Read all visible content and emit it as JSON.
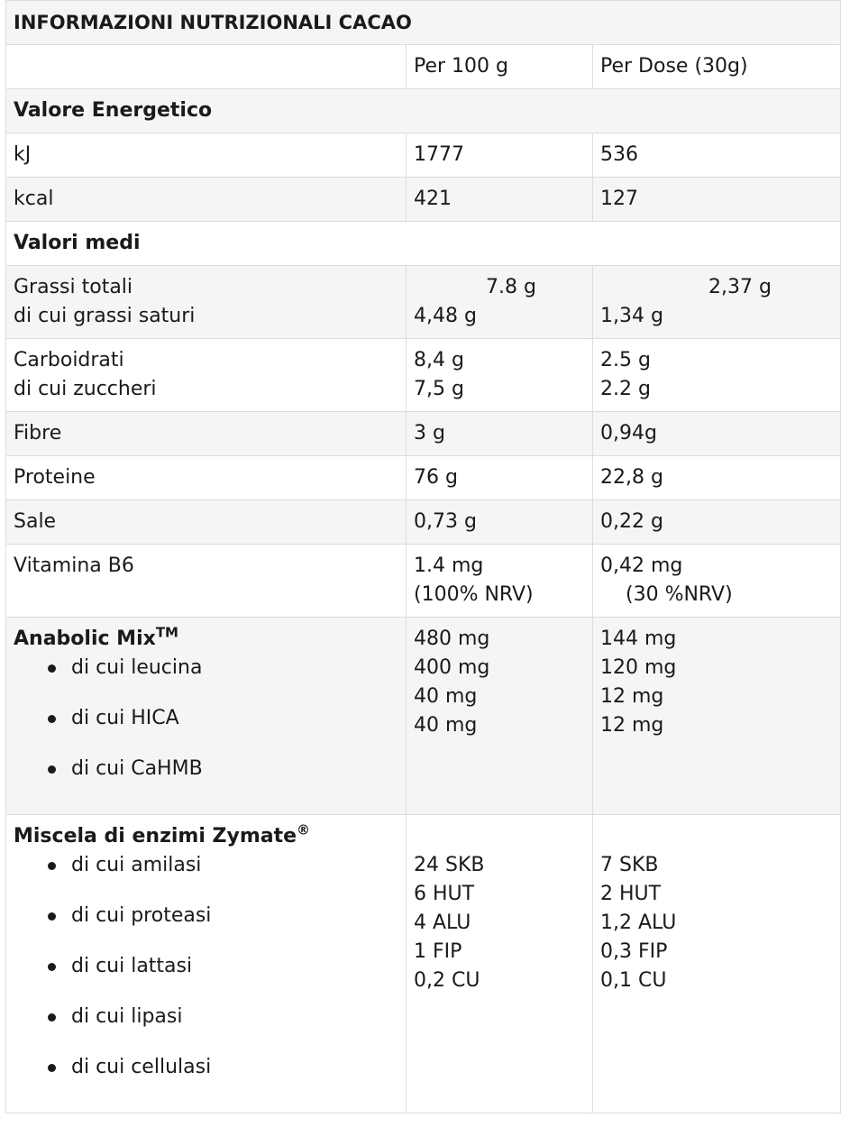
{
  "title": "INFORMAZIONI NUTRIZIONALI CACAO",
  "columns": {
    "per100": "Per 100 g",
    "perDose": "Per Dose (30g)"
  },
  "energy_header": "Valore Energetico",
  "energy": [
    {
      "label": "kJ",
      "per100": "1777",
      "perDose": "536"
    },
    {
      "label": "kcal",
      "per100": "421",
      "perDose": "127"
    }
  ],
  "means_header": "Valori medi",
  "fats": {
    "label1": "Grassi totali",
    "label2": "di cui grassi saturi",
    "per100_1": "7.8 g",
    "per100_2": "4,48 g",
    "perDose_1": "2,37 g",
    "perDose_2": "1,34 g"
  },
  "carbs": {
    "label1": "Carboidrati",
    "label2": "di cui zuccheri",
    "per100_1": "8,4 g",
    "per100_2": "7,5 g",
    "perDose_1": "2.5 g",
    "perDose_2": "2.2 g"
  },
  "fibre": {
    "label": "Fibre",
    "per100": "3 g",
    "perDose": "0,94g"
  },
  "protein": {
    "label": "Proteine",
    "per100": "76 g",
    "perDose": "22,8 g"
  },
  "salt": {
    "label": "Sale",
    "per100": "0,73 g",
    "perDose": "0,22 g"
  },
  "vitb6": {
    "label": "Vitamina B6",
    "per100_1": "1.4 mg",
    "per100_2": "(100% NRV)",
    "perDose_1": "0,42 mg",
    "perDose_2": "(30 %NRV)"
  },
  "anabolic": {
    "label": "Anabolic Mix",
    "mark": "TM",
    "items": [
      "di cui leucina",
      "di cui HICA",
      "di cui CaHMB"
    ],
    "per100": [
      "480 mg",
      "400 mg",
      "40 mg",
      "40 mg"
    ],
    "perDose": [
      "144 mg",
      "120 mg",
      "12 mg",
      "12  mg"
    ]
  },
  "zymate": {
    "label": "Miscela di enzimi Zymate",
    "mark": "®",
    "items": [
      "di cui amilasi",
      "di cui proteasi",
      "di cui lattasi",
      "di cui lipasi",
      "di cui cellulasi"
    ],
    "per100": [
      "24 SKB",
      "6 HUT",
      "4 ALU",
      "1 FIP",
      "0,2 CU"
    ],
    "perDose": [
      "7 SKB",
      "2 HUT",
      "1,2 ALU",
      "0,3 FIP",
      "0,1 CU"
    ]
  }
}
